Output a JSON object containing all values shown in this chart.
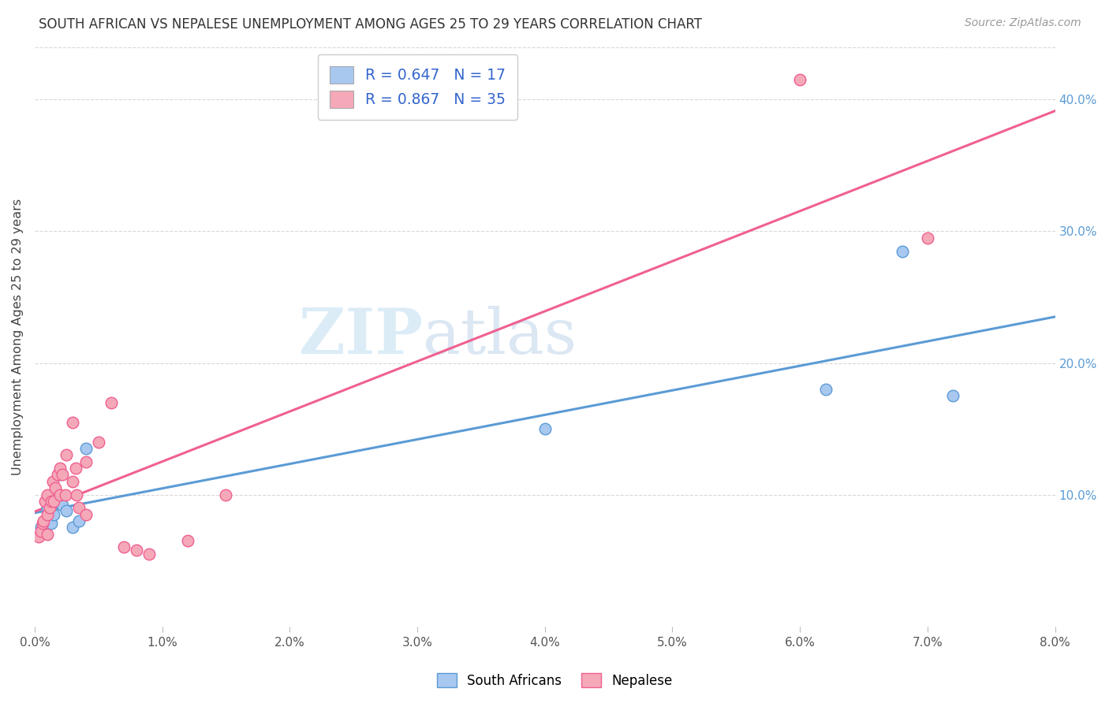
{
  "title": "SOUTH AFRICAN VS NEPALESE UNEMPLOYMENT AMONG AGES 25 TO 29 YEARS CORRELATION CHART",
  "source": "Source: ZipAtlas.com",
  "ylabel": "Unemployment Among Ages 25 to 29 years",
  "xlim": [
    0.0,
    0.08
  ],
  "ylim": [
    0.0,
    0.44
  ],
  "xtick_labels": [
    "0.0%",
    "1.0%",
    "2.0%",
    "3.0%",
    "4.0%",
    "5.0%",
    "6.0%",
    "7.0%",
    "8.0%"
  ],
  "xtick_vals": [
    0.0,
    0.01,
    0.02,
    0.03,
    0.04,
    0.05,
    0.06,
    0.07,
    0.08
  ],
  "ytick_labels": [
    "10.0%",
    "20.0%",
    "30.0%",
    "40.0%"
  ],
  "ytick_vals": [
    0.1,
    0.2,
    0.3,
    0.4
  ],
  "south_africans_x": [
    0.0005,
    0.0008,
    0.001,
    0.001,
    0.0013,
    0.0015,
    0.0015,
    0.002,
    0.0022,
    0.0025,
    0.003,
    0.004,
    0.0035,
    0.062,
    0.068,
    0.072,
    0.04
  ],
  "south_africans_y": [
    0.075,
    0.08,
    0.082,
    0.09,
    0.078,
    0.085,
    0.095,
    0.115,
    0.092,
    0.088,
    0.075,
    0.135,
    0.08,
    0.18,
    0.285,
    0.175,
    0.15
  ],
  "nepalese_x": [
    0.0003,
    0.0005,
    0.0006,
    0.0007,
    0.0008,
    0.001,
    0.001,
    0.001,
    0.0012,
    0.0013,
    0.0014,
    0.0015,
    0.0016,
    0.0018,
    0.002,
    0.002,
    0.0022,
    0.0024,
    0.0025,
    0.003,
    0.003,
    0.0032,
    0.0033,
    0.0035,
    0.004,
    0.004,
    0.005,
    0.006,
    0.007,
    0.008,
    0.009,
    0.012,
    0.015,
    0.06,
    0.07
  ],
  "nepalese_y": [
    0.068,
    0.072,
    0.078,
    0.08,
    0.095,
    0.07,
    0.085,
    0.1,
    0.09,
    0.095,
    0.11,
    0.095,
    0.105,
    0.115,
    0.1,
    0.12,
    0.115,
    0.1,
    0.13,
    0.155,
    0.11,
    0.12,
    0.1,
    0.09,
    0.125,
    0.085,
    0.14,
    0.17,
    0.06,
    0.058,
    0.055,
    0.065,
    0.1,
    0.415,
    0.295
  ],
  "sa_color": "#a8c8f0",
  "nep_color": "#f4a8b8",
  "sa_line_color": "#5b9bd5",
  "nep_line_color": "#f06090",
  "sa_R": 0.647,
  "sa_N": 17,
  "nep_R": 0.867,
  "nep_N": 35,
  "legend_text_color": "#3366cc",
  "legend_N_color": "#cc0000",
  "watermark_text": "ZIP",
  "watermark_text2": "atlas",
  "background_color": "#ffffff",
  "grid_color": "#d8d8d8"
}
